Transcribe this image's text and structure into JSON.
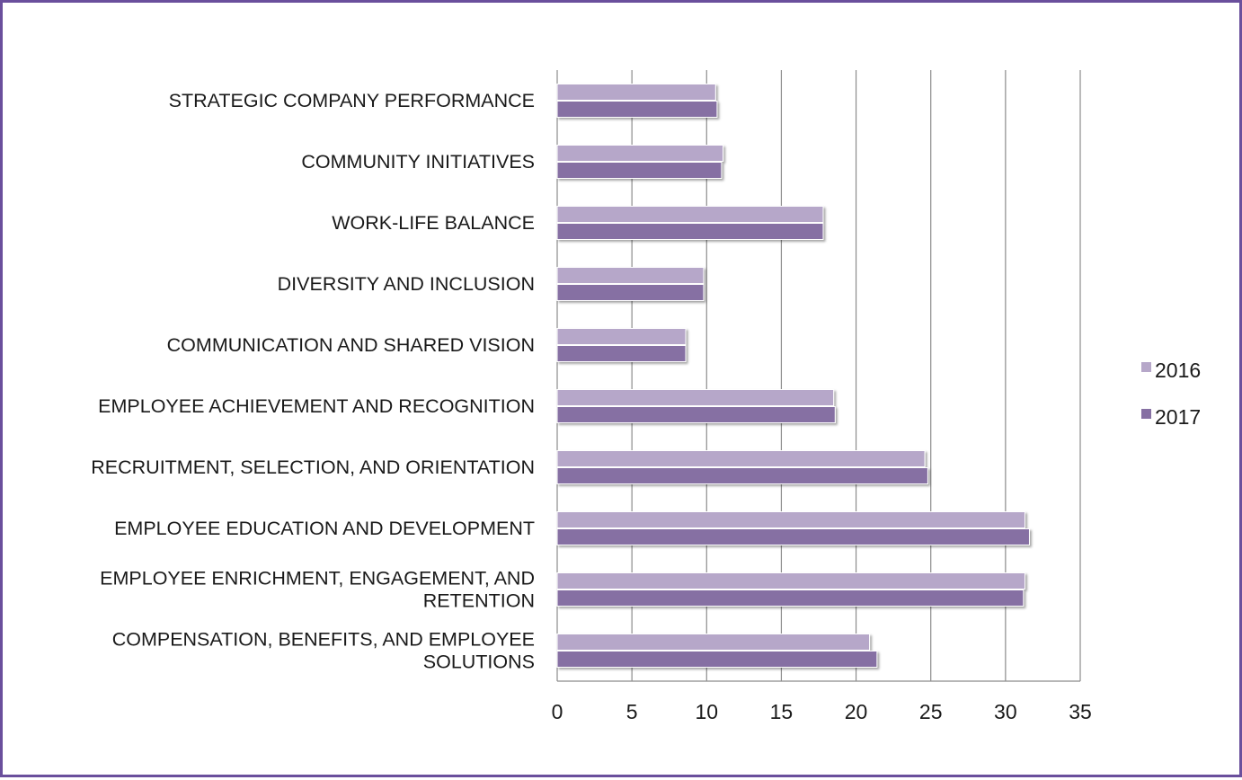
{
  "chart_data": {
    "type": "bar",
    "orientation": "horizontal",
    "categories": [
      "STRATEGIC COMPANY PERFORMANCE",
      "COMMUNITY INITIATIVES",
      "WORK-LIFE BALANCE",
      "DIVERSITY AND INCLUSION",
      "COMMUNICATION AND SHARED VISION",
      "EMPLOYEE ACHIEVEMENT AND RECOGNITION",
      "RECRUITMENT, SELECTION, AND ORIENTATION",
      "EMPLOYEE EDUCATION AND DEVELOPMENT",
      "EMPLOYEE ENRICHMENT, ENGAGEMENT, AND RETENTION",
      "COMPENSATION, BENEFITS, AND EMPLOYEE SOLUTIONS"
    ],
    "category_lines": [
      [
        "STRATEGIC COMPANY PERFORMANCE"
      ],
      [
        "COMMUNITY INITIATIVES"
      ],
      [
        "WORK-LIFE BALANCE"
      ],
      [
        "DIVERSITY AND INCLUSION"
      ],
      [
        "COMMUNICATION AND SHARED VISION"
      ],
      [
        "EMPLOYEE ACHIEVEMENT AND RECOGNITION"
      ],
      [
        "RECRUITMENT, SELECTION, AND ORIENTATION"
      ],
      [
        "EMPLOYEE EDUCATION AND DEVELOPMENT"
      ],
      [
        "EMPLOYEE ENRICHMENT, ENGAGEMENT, AND",
        "RETENTION"
      ],
      [
        "COMPENSATION, BENEFITS, AND EMPLOYEE",
        "SOLUTIONS"
      ]
    ],
    "series": [
      {
        "name": "2016",
        "color": "#b6a7c9",
        "values": [
          10.6,
          11.1,
          17.8,
          9.8,
          8.6,
          18.5,
          24.6,
          31.3,
          31.3,
          20.9
        ]
      },
      {
        "name": "2017",
        "color": "#8670a3",
        "values": [
          10.7,
          11.0,
          17.8,
          9.8,
          8.6,
          18.6,
          24.8,
          31.6,
          31.2,
          21.4
        ]
      }
    ],
    "xlim": [
      0,
      35
    ],
    "xticks": [
      "0",
      "5",
      "10",
      "15",
      "20",
      "25",
      "30",
      "35"
    ],
    "title": "",
    "xlabel": "",
    "ylabel": "",
    "grid": "vertical",
    "legend": "right"
  }
}
